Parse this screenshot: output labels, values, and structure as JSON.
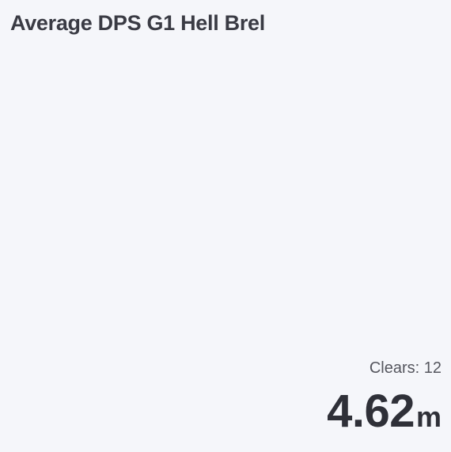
{
  "card": {
    "title": "Average DPS G1 Hell Brel",
    "clears_label": "Clears:",
    "clears_value": "12",
    "value": "4.62",
    "unit": "m"
  }
}
